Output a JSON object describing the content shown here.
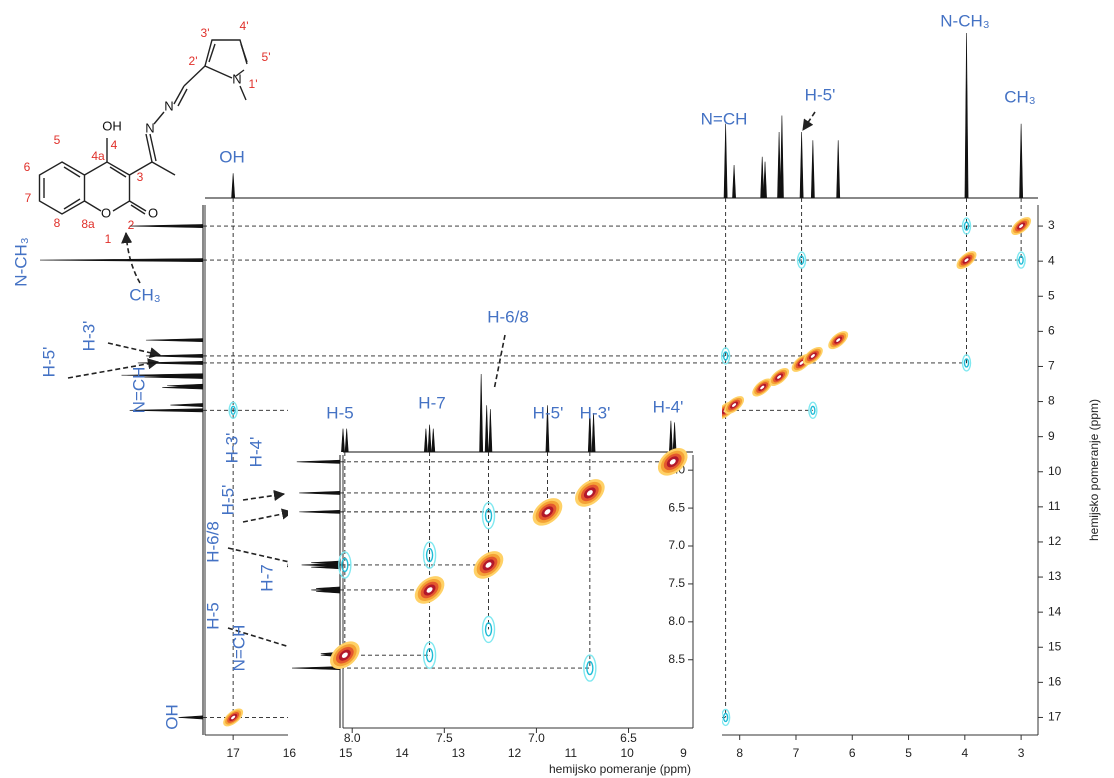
{
  "structure": {
    "atoms": [
      "OH",
      "N",
      "N",
      "N",
      "O",
      "O"
    ],
    "numbers": [
      "4",
      "5",
      "4a",
      "6",
      "7",
      "8",
      "8a",
      "3",
      "2",
      "1",
      "2'",
      "3'",
      "4'",
      "5'",
      "1'"
    ]
  },
  "chart_data": [
    {
      "type": "contour2d",
      "xlabel": "hemijsko pomeranje (ppm)",
      "ylabel": "hemijsko pomeranje (ppm)",
      "xlim": [
        17.5,
        2.7
      ],
      "ylim": [
        2.4,
        17.5
      ],
      "xticks": [
        17,
        16,
        15,
        14,
        13,
        12,
        11,
        10,
        9,
        8,
        7,
        6,
        5,
        4,
        3
      ],
      "yticks": [
        3,
        4,
        5,
        6,
        7,
        8,
        9,
        10,
        11,
        12,
        13,
        14,
        15,
        16,
        17
      ],
      "projection": {
        "x": [
          17.0,
          8.25,
          8.1,
          7.6,
          7.55,
          7.3,
          7.25,
          6.9,
          6.7,
          6.25,
          3.97,
          3.0
        ],
        "heights": [
          0.15,
          0.45,
          0.2,
          0.25,
          0.22,
          0.4,
          0.5,
          0.4,
          0.35,
          0.35,
          1.0,
          0.45
        ]
      },
      "peaks": {
        "x": [
          17.0,
          8.25,
          8.1,
          7.6,
          7.3,
          6.9,
          6.7,
          6.25,
          3.97,
          3.0,
          17.0,
          8.25,
          6.9,
          3.97,
          3.97,
          3.0,
          6.7,
          8.25
        ],
        "y": [
          17.0,
          8.25,
          8.1,
          7.6,
          7.3,
          6.9,
          6.7,
          6.25,
          3.97,
          3.0,
          8.25,
          17.0,
          3.97,
          6.9,
          3.0,
          3.97,
          8.25,
          6.7
        ],
        "kind": [
          "diagonal",
          "diagonal",
          "diagonal",
          "diagonal",
          "diagonal",
          "diagonal",
          "diagonal",
          "diagonal",
          "diagonal",
          "diagonal",
          "cross",
          "cross",
          "cross",
          "cross",
          "cross",
          "cross",
          "cross",
          "cross"
        ]
      },
      "top_labels": [
        {
          "text": "OH",
          "x": 17.0
        },
        {
          "text": "N=CH",
          "x": 8.25
        },
        {
          "text": "H-5'",
          "x": 6.9
        },
        {
          "text": "N-CH₃",
          "x": 3.97
        },
        {
          "text": "CH₃",
          "x": 3.0
        }
      ],
      "side_labels": [
        {
          "text": "N-CH₃",
          "y": 3.97
        },
        {
          "text": "CH₃",
          "y": 3.0
        },
        {
          "text": "H-3'",
          "y": 6.7
        },
        {
          "text": "H-5'",
          "y": 6.9
        },
        {
          "text": "N=CH",
          "y": 8.25
        },
        {
          "text": "OH",
          "y": 17.0
        }
      ],
      "colors": {
        "diagonal": [
          "#ffd166",
          "#f4a236",
          "#e4572e",
          "#b2182b",
          "#ffffff"
        ],
        "cross": [
          "#7fe8f0",
          "#1fbcd6"
        ],
        "spectrum": "#111111",
        "label": "#4472c4"
      }
    },
    {
      "type": "contour2d",
      "xlim": [
        8.05,
        6.15
      ],
      "ylim": [
        5.8,
        9.4
      ],
      "xticks": [
        {
          "value": 8,
          "label": "8.0"
        },
        7.5,
        {
          "value": 7,
          "label": "7.0"
        },
        6.5
      ],
      "yticks": [
        {
          "value": 6,
          "label": "6.0"
        },
        6.5,
        {
          "value": 7,
          "label": "7.0"
        },
        7.5,
        {
          "value": 8,
          "label": "8.0"
        },
        8.5
      ],
      "projection": {
        "x": [
          8.05,
          8.03,
          7.6,
          7.58,
          7.56,
          7.3,
          7.27,
          7.25,
          6.94,
          6.71,
          6.69,
          6.27,
          6.25
        ],
        "heights": [
          0.3,
          0.3,
          0.3,
          0.35,
          0.3,
          1.0,
          0.6,
          0.55,
          0.6,
          0.55,
          0.5,
          0.4,
          0.38
        ]
      },
      "side_projection": {
        "y": [
          5.89,
          6.3,
          6.55,
          7.22,
          7.25,
          7.28,
          7.56,
          7.58,
          7.6,
          8.42,
          8.44,
          8.61
        ],
        "heights": [
          0.9,
          0.85,
          0.85,
          0.6,
          0.8,
          0.6,
          0.5,
          0.6,
          0.5,
          0.4,
          0.4,
          1.0
        ]
      },
      "peaks": {
        "x": [
          8.04,
          7.58,
          7.26,
          6.94,
          6.71,
          6.26,
          6.71,
          7.26,
          7.58,
          8.04,
          7.26,
          7.58
        ],
        "y": [
          8.44,
          7.58,
          7.25,
          6.55,
          6.3,
          5.89,
          8.61,
          6.6,
          7.12,
          7.25,
          8.1,
          8.44
        ],
        "kind": [
          "diagonal",
          "diagonal",
          "diagonal",
          "diagonal",
          "diagonal",
          "diagonal",
          "cross",
          "cross",
          "cross",
          "cross",
          "cross",
          "cross"
        ]
      },
      "top_labels": [
        {
          "text": "H-5",
          "x": 8.04
        },
        {
          "text": "H-7",
          "x": 7.58
        },
        {
          "text": "H-6/8",
          "x": 7.26
        },
        {
          "text": "H-5'",
          "x": 6.94
        },
        {
          "text": "H-3'",
          "x": 6.71
        },
        {
          "text": "H-4'",
          "x": 6.26
        }
      ],
      "side_labels": [
        {
          "text": "H-4'",
          "y": 5.89
        },
        {
          "text": "H-3'",
          "y": 6.3
        },
        {
          "text": "H-5'",
          "y": 6.55
        },
        {
          "text": "H-6/8",
          "y": 7.25
        },
        {
          "text": "H-7",
          "y": 7.58
        },
        {
          "text": "H-5",
          "y": 8.44
        },
        {
          "text": "N=CH",
          "y": 8.61
        }
      ],
      "colors": {
        "diagonal": [
          "#ffd166",
          "#f4a236",
          "#e4572e",
          "#b2182b",
          "#ffffff"
        ],
        "cross": [
          "#7fe8f0",
          "#1fbcd6"
        ],
        "spectrum": "#111111",
        "label": "#4472c4"
      }
    }
  ]
}
